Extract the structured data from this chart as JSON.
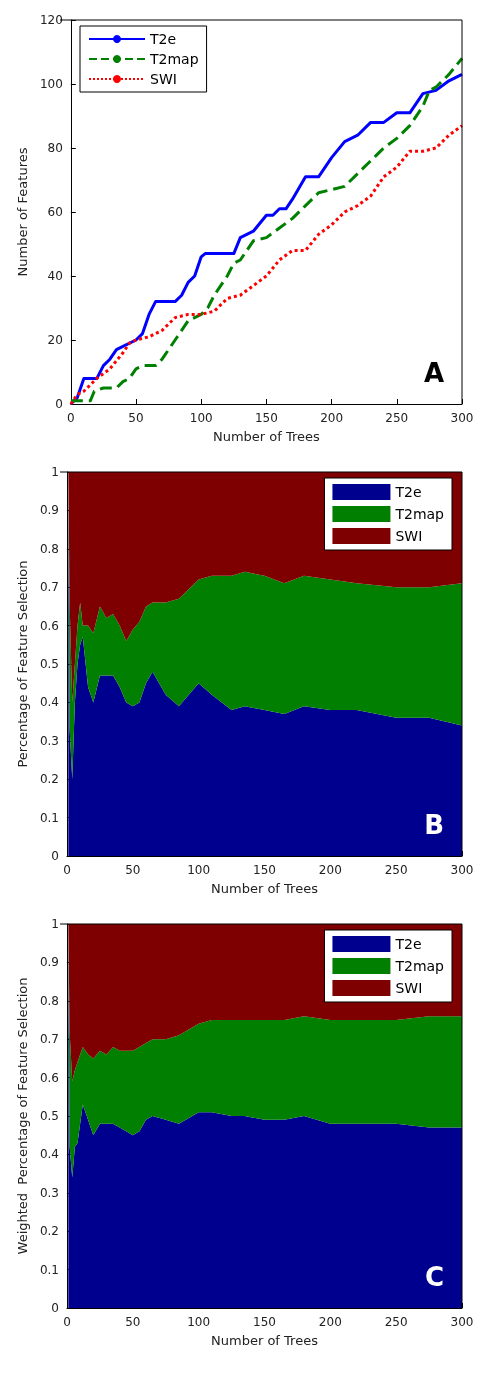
{
  "chart_data": [
    {
      "type": "line",
      "xlabel": "Number of Trees",
      "ylabel": "Number of Features",
      "annotations": [
        "A"
      ],
      "xlim": [
        0,
        300
      ],
      "xticks": [
        0,
        50,
        100,
        150,
        200,
        250,
        300
      ],
      "ylim": [
        0,
        120
      ],
      "yticks": [
        0,
        20,
        40,
        60,
        80,
        100,
        120
      ],
      "grid": false,
      "legend": "top left",
      "marker": "none",
      "series": [
        {
          "name": "T2e",
          "color": "#0000ff",
          "line_style": "solid",
          "x": [
            0,
            5,
            10,
            20,
            25,
            30,
            35,
            40,
            50,
            55,
            60,
            65,
            80,
            85,
            90,
            95,
            100,
            103,
            125,
            130,
            140,
            150,
            155,
            160,
            165,
            170,
            180,
            190,
            200,
            210,
            220,
            230,
            240,
            250,
            260,
            270,
            280,
            290,
            300
          ],
          "values": [
            0,
            2,
            8,
            8,
            12,
            14,
            17,
            18,
            20,
            22,
            28,
            32,
            32,
            34,
            38,
            40,
            46,
            47,
            47,
            52,
            54,
            59,
            59,
            61,
            61,
            64,
            71,
            71,
            77,
            82,
            84,
            88,
            88,
            91,
            91,
            97,
            98,
            101,
            103
          ]
        },
        {
          "name": "T2map",
          "color": "#008000",
          "line_style": "dashed",
          "x": [
            0,
            10,
            15,
            18,
            25,
            35,
            40,
            45,
            50,
            55,
            65,
            70,
            80,
            90,
            100,
            105,
            110,
            120,
            125,
            130,
            140,
            150,
            160,
            170,
            180,
            190,
            200,
            210,
            220,
            230,
            240,
            250,
            260,
            270,
            275,
            280,
            290,
            300
          ],
          "values": [
            1,
            1,
            1,
            4,
            5,
            5,
            7,
            8,
            11,
            12,
            12,
            14,
            20,
            26,
            28,
            30,
            34,
            40,
            44,
            45,
            51,
            52,
            55,
            58,
            62,
            66,
            67,
            68,
            72,
            76,
            80,
            83,
            87,
            93,
            98,
            99,
            103,
            108
          ]
        },
        {
          "name": "SWI",
          "color": "#ff0000",
          "line_style": "dotted",
          "x": [
            0,
            5,
            10,
            20,
            30,
            40,
            45,
            50,
            60,
            70,
            80,
            90,
            100,
            110,
            120,
            130,
            140,
            150,
            160,
            170,
            180,
            190,
            200,
            210,
            220,
            230,
            240,
            250,
            260,
            270,
            280,
            290,
            300
          ],
          "values": [
            0,
            3,
            4,
            8,
            11,
            16,
            19,
            20,
            21,
            23,
            27,
            28,
            28,
            29,
            33,
            34,
            37,
            40,
            45,
            48,
            48,
            53,
            56,
            60,
            62,
            65,
            71,
            74,
            79,
            79,
            80,
            84,
            87
          ]
        }
      ]
    },
    {
      "type": "area",
      "stacked": true,
      "xlabel": "Number of Trees",
      "ylabel": "Percentage of Feature Selection",
      "annotations": [
        "B"
      ],
      "xlim": [
        0,
        300
      ],
      "xticks": [
        0,
        50,
        100,
        150,
        200,
        250,
        300
      ],
      "ylim": [
        0,
        1
      ],
      "yticks": [
        0,
        0.1,
        0.2,
        0.3,
        0.4,
        0.5,
        0.6,
        0.7,
        0.8,
        0.9,
        1
      ],
      "grid": false,
      "legend": "top right",
      "x": [
        1,
        2,
        4,
        6,
        8,
        10,
        12,
        16,
        20,
        25,
        30,
        35,
        40,
        45,
        50,
        55,
        60,
        65,
        75,
        85,
        100,
        110,
        125,
        135,
        150,
        165,
        180,
        200,
        220,
        250,
        275,
        300
      ],
      "series": [
        {
          "name": "T2e",
          "color": "#00008f",
          "values": [
            1.0,
            0.33,
            0.2,
            0.4,
            0.5,
            0.55,
            0.57,
            0.44,
            0.4,
            0.47,
            0.47,
            0.47,
            0.44,
            0.4,
            0.39,
            0.4,
            0.45,
            0.48,
            0.42,
            0.39,
            0.45,
            0.42,
            0.38,
            0.39,
            0.38,
            0.37,
            0.39,
            0.38,
            0.38,
            0.36,
            0.36,
            0.34
          ]
        },
        {
          "name": "T2map",
          "color": "#007f00",
          "values": [
            0,
            0.33,
            0.2,
            0.1,
            0.1,
            0.11,
            0.03,
            0.16,
            0.18,
            0.18,
            0.15,
            0.16,
            0.16,
            0.16,
            0.2,
            0.21,
            0.2,
            0.18,
            0.24,
            0.28,
            0.27,
            0.31,
            0.35,
            0.35,
            0.35,
            0.34,
            0.34,
            0.34,
            0.33,
            0.34,
            0.34,
            0.37
          ]
        },
        {
          "name": "SWI",
          "color": "#7f0000",
          "values": [
            0,
            0.34,
            0.6,
            0.5,
            0.4,
            0.34,
            0.4,
            0.4,
            0.42,
            0.35,
            0.38,
            0.37,
            0.4,
            0.44,
            0.41,
            0.39,
            0.35,
            0.34,
            0.34,
            0.33,
            0.28,
            0.27,
            0.27,
            0.26,
            0.27,
            0.29,
            0.27,
            0.28,
            0.29,
            0.3,
            0.3,
            0.29
          ]
        }
      ]
    },
    {
      "type": "area",
      "stacked": true,
      "xlabel": "Number of Trees",
      "ylabel": "Weighted  Percentage of Feature Selection",
      "annotations": [
        "C"
      ],
      "xlim": [
        0,
        300
      ],
      "xticks": [
        0,
        50,
        100,
        150,
        200,
        250,
        300
      ],
      "ylim": [
        0,
        1
      ],
      "yticks": [
        0,
        0.1,
        0.2,
        0.3,
        0.4,
        0.5,
        0.6,
        0.7,
        0.8,
        0.9,
        1
      ],
      "grid": false,
      "legend": "top right",
      "x": [
        1,
        2,
        4,
        6,
        8,
        10,
        12,
        16,
        20,
        25,
        30,
        35,
        40,
        45,
        50,
        55,
        60,
        65,
        75,
        85,
        100,
        110,
        125,
        135,
        150,
        165,
        180,
        200,
        220,
        250,
        275,
        300
      ],
      "series": [
        {
          "name": "T2e",
          "color": "#00008f",
          "values": [
            1.0,
            0.42,
            0.34,
            0.42,
            0.43,
            0.48,
            0.53,
            0.49,
            0.45,
            0.48,
            0.48,
            0.48,
            0.47,
            0.46,
            0.45,
            0.46,
            0.49,
            0.5,
            0.49,
            0.48,
            0.51,
            0.51,
            0.5,
            0.5,
            0.49,
            0.49,
            0.5,
            0.48,
            0.48,
            0.48,
            0.47,
            0.47
          ]
        },
        {
          "name": "T2map",
          "color": "#007f00",
          "values": [
            0,
            0.3,
            0.25,
            0.2,
            0.21,
            0.18,
            0.15,
            0.17,
            0.2,
            0.19,
            0.18,
            0.2,
            0.2,
            0.21,
            0.22,
            0.22,
            0.2,
            0.2,
            0.21,
            0.23,
            0.23,
            0.24,
            0.25,
            0.25,
            0.26,
            0.26,
            0.26,
            0.27,
            0.27,
            0.27,
            0.29,
            0.29
          ]
        },
        {
          "name": "SWI",
          "color": "#7f0000",
          "values": [
            0,
            0.28,
            0.41,
            0.38,
            0.36,
            0.34,
            0.32,
            0.34,
            0.35,
            0.33,
            0.34,
            0.32,
            0.33,
            0.33,
            0.33,
            0.32,
            0.31,
            0.3,
            0.3,
            0.29,
            0.26,
            0.25,
            0.25,
            0.25,
            0.25,
            0.25,
            0.24,
            0.25,
            0.25,
            0.25,
            0.24,
            0.24
          ]
        }
      ]
    }
  ]
}
